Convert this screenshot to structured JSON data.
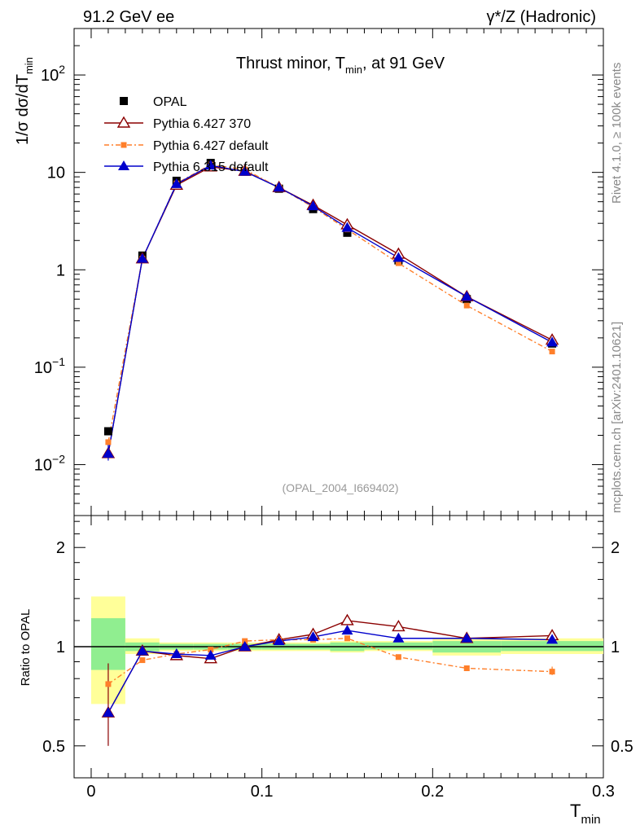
{
  "header": {
    "left": "91.2 GeV ee",
    "right": "γ*/Z (Hadronic)"
  },
  "side_labels": {
    "rivet": "Rivet 4.1.0, ≥ 100k events",
    "mcplots": "mcplots.cern.ch [arXiv:2401.10621]"
  },
  "colors": {
    "opal": "#000000",
    "py6427_370": "#8b0000",
    "py6427_default": "#ff7f2a",
    "py6315_default": "#0000cc",
    "band_inner": "#90ee90",
    "band_outer": "#ffff99"
  },
  "chart_data": [
    {
      "type": "scatter",
      "name": "main",
      "title_parts": [
        "Thrust minor, T",
        "min",
        ", at 91 GeV"
      ],
      "ylabel_parts": [
        "1/σ  dσ/dT",
        "min"
      ],
      "yscale": "log",
      "ylim": [
        0.003,
        300
      ],
      "xlim": [
        -0.01,
        0.3
      ],
      "y_tick_labels": [
        {
          "base": "10",
          "exp": "−2",
          "value": 0.01
        },
        {
          "base": "10",
          "exp": "−1",
          "value": 0.1
        },
        {
          "base": "",
          "exp": "",
          "label": "1",
          "value": 1
        },
        {
          "base": "",
          "exp": "",
          "label": "10",
          "value": 10
        },
        {
          "base": "10",
          "exp": "2",
          "value": 100
        }
      ],
      "watermark": "(OPAL_2004_I669402)",
      "legend": {
        "position": "top-left",
        "entries": [
          "OPAL",
          "Pythia 6.427 370",
          "Pythia 6.427 default",
          "Pythia 6.315 default"
        ]
      },
      "x": [
        0.01,
        0.03,
        0.05,
        0.07,
        0.09,
        0.11,
        0.13,
        0.15,
        0.18,
        0.22,
        0.27
      ],
      "series": [
        {
          "name": "OPAL",
          "marker": "square",
          "values": [
            0.022,
            1.4,
            8.2,
            12.5,
            10.2,
            6.8,
            4.2,
            2.4,
            1.25,
            0.5,
            0.175
          ]
        },
        {
          "name": "Pythia 6.427 370",
          "marker": "open-triangle",
          "values": [
            0.013,
            1.3,
            7.4,
            11.4,
            10.3,
            7.0,
            4.6,
            2.9,
            1.45,
            0.53,
            0.19
          ]
        },
        {
          "name": "Pythia 6.427 default",
          "marker": "small-square",
          "values": [
            0.017,
            1.3,
            7.7,
            12.0,
            10.7,
            7.0,
            4.4,
            2.6,
            1.17,
            0.43,
            0.145
          ]
        },
        {
          "name": "Pythia 6.315 default",
          "marker": "filled-triangle",
          "values": [
            0.013,
            1.3,
            7.6,
            11.8,
            10.2,
            7.0,
            4.5,
            2.7,
            1.33,
            0.53,
            0.18
          ]
        }
      ]
    },
    {
      "type": "scatter",
      "name": "ratio",
      "ylabel": "Ratio to OPAL",
      "xlabel_parts": [
        "T",
        "min"
      ],
      "yscale": "log",
      "ylim": [
        0.4,
        2.5
      ],
      "xlim": [
        -0.01,
        0.3
      ],
      "x_tick_labels": [
        "0",
        "0.1",
        "0.2",
        "0.3"
      ],
      "x_tick_values": [
        0,
        0.1,
        0.2,
        0.3
      ],
      "y_tick_labels": [
        "0.5",
        "1",
        "2"
      ],
      "y_tick_values": [
        0.5,
        1,
        2
      ],
      "bin_edges": [
        0,
        0.02,
        0.04,
        0.06,
        0.08,
        0.1,
        0.12,
        0.14,
        0.16,
        0.2,
        0.24,
        0.3
      ],
      "band_inner": [
        [
          0.85,
          1.22
        ],
        [
          0.97,
          1.03
        ],
        [
          0.98,
          1.02
        ],
        [
          0.98,
          1.02
        ],
        [
          0.98,
          1.02
        ],
        [
          0.98,
          1.02
        ],
        [
          0.98,
          1.02
        ],
        [
          0.97,
          1.03
        ],
        [
          0.98,
          1.03
        ],
        [
          0.96,
          1.04
        ],
        [
          0.97,
          1.04
        ]
      ],
      "band_outer": [
        [
          0.67,
          1.42
        ],
        [
          0.95,
          1.06
        ],
        [
          0.97,
          1.03
        ],
        [
          0.97,
          1.03
        ],
        [
          0.97,
          1.03
        ],
        [
          0.97,
          1.03
        ],
        [
          0.97,
          1.03
        ],
        [
          0.96,
          1.04
        ],
        [
          0.97,
          1.04
        ],
        [
          0.94,
          1.06
        ],
        [
          0.95,
          1.06
        ]
      ],
      "x": [
        0.01,
        0.03,
        0.05,
        0.07,
        0.09,
        0.11,
        0.13,
        0.15,
        0.18,
        0.22,
        0.27
      ],
      "series": [
        {
          "name": "Pythia 6.427 370",
          "marker": "open-triangle",
          "values": [
            0.63,
            0.97,
            0.94,
            0.92,
            1.0,
            1.05,
            1.09,
            1.2,
            1.15,
            1.06,
            1.08
          ]
        },
        {
          "name": "Pythia 6.427 default",
          "marker": "small-square",
          "values": [
            0.77,
            0.91,
            0.95,
            0.98,
            1.04,
            1.05,
            1.05,
            1.06,
            0.93,
            0.86,
            0.84
          ]
        },
        {
          "name": "Pythia 6.315 default",
          "marker": "filled-triangle",
          "values": [
            0.63,
            0.97,
            0.95,
            0.94,
            1.0,
            1.04,
            1.07,
            1.12,
            1.06,
            1.06,
            1.05
          ]
        }
      ]
    }
  ]
}
